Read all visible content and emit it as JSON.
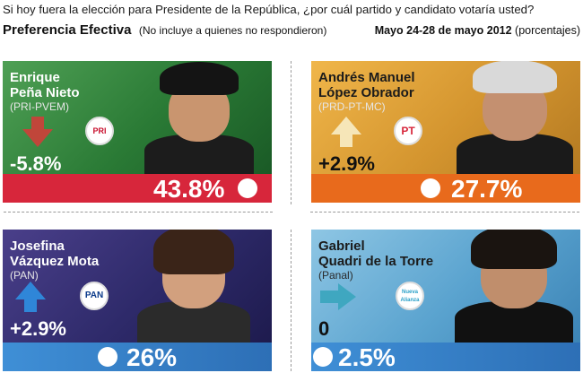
{
  "header": {
    "question": "Si hoy fuera la elección para Presidente de la República, ¿por cuál partido y candidato votaría usted?",
    "section": "Preferencia Efectiva",
    "note": "(No incluye a quienes no respondieron)",
    "dates": "Mayo 24-28 de mayo 2012",
    "units": "(porcentajes)"
  },
  "candidates": [
    {
      "name_line1": "Enrique",
      "name_line2": "Peña Nieto",
      "party": "(PRI-PVEM)",
      "change": "-5.8%",
      "value": "43.8%",
      "direction": "down",
      "logo": "PRI",
      "bg_color": "#2a7a35",
      "bar_color": "#d7263b"
    },
    {
      "name_line1": "Andrés Manuel",
      "name_line2": "López Obrador",
      "party": "(PRD-PT-MC)",
      "change": "+2.9%",
      "value": "27.7%",
      "direction": "up",
      "logo": "PT",
      "bg_color": "#d4952f",
      "bar_color": "#e86a1c"
    },
    {
      "name_line1": "Josefina",
      "name_line2": "Vázquez Mota",
      "party": "(PAN)",
      "change": "+2.9%",
      "value": "26%",
      "direction": "up",
      "logo": "PAN",
      "bg_color": "#2e2a6a",
      "bar_color": "#3f8fd6"
    },
    {
      "name_line1": "Gabriel",
      "name_line2": "Quadri de la Torre",
      "party": "(Panal)",
      "change": "0",
      "value": "2.5%",
      "direction": "right",
      "logo": "Nueva Alianza",
      "bg_color": "#5aa3cf",
      "bar_color": "#3f8fd6"
    }
  ],
  "chart_data": {
    "type": "bar",
    "categories": [
      "Enrique Peña Nieto",
      "Andrés Manuel López Obrador",
      "Josefina Vázquez Mota",
      "Gabriel Quadri de la Torre"
    ],
    "values": [
      43.8,
      27.7,
      26,
      2.5
    ],
    "changes": [
      -5.8,
      2.9,
      2.9,
      0
    ],
    "parties": [
      "PRI-PVEM",
      "PRD-PT-MC",
      "PAN",
      "Panal"
    ],
    "title": "Preferencia Efectiva",
    "subtitle": "Mayo 24-28 de mayo 2012 (porcentajes)",
    "ylim": [
      0,
      100
    ]
  }
}
